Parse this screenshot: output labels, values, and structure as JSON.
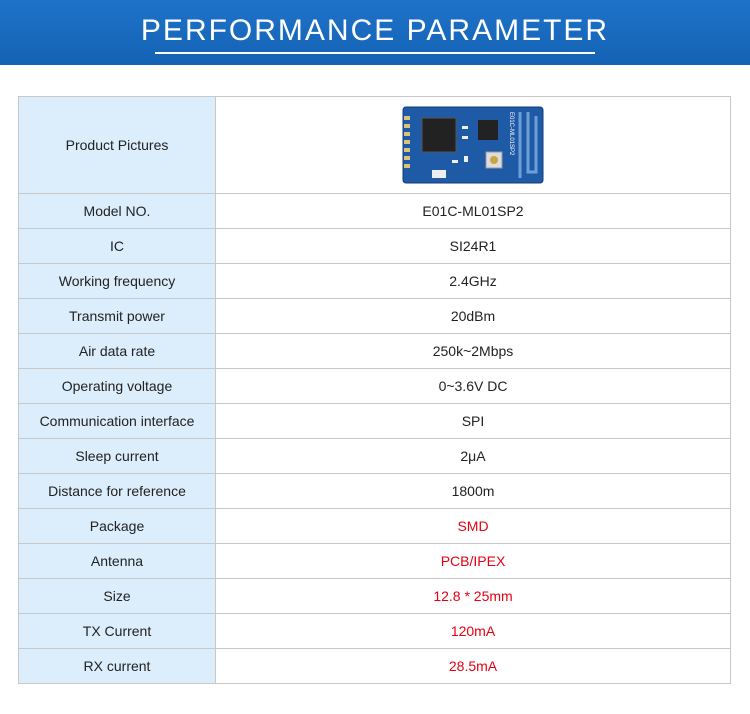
{
  "header": {
    "title": "PERFORMANCE PARAMETER"
  },
  "table": {
    "picture_row": {
      "label": "Product Pictures",
      "image_label": "E01C-ML01SP2"
    },
    "rows": [
      {
        "label": "Model NO.",
        "value": "E01C-ML01SP2",
        "highlight": false
      },
      {
        "label": "IC",
        "value": "SI24R1",
        "highlight": false
      },
      {
        "label": "Working frequency",
        "value": "2.4GHz",
        "highlight": false
      },
      {
        "label": "Transmit power",
        "value": "20dBm",
        "highlight": false
      },
      {
        "label": "Air data rate",
        "value": "250k~2Mbps",
        "highlight": false
      },
      {
        "label": "Operating voltage",
        "value": "0~3.6V DC",
        "highlight": false
      },
      {
        "label": "Communication interface",
        "value": "SPI",
        "highlight": false
      },
      {
        "label": "Sleep current",
        "value": "2μA",
        "highlight": false
      },
      {
        "label": "Distance for reference",
        "value": "1800m",
        "highlight": false
      },
      {
        "label": "Package",
        "value": "SMD",
        "highlight": true
      },
      {
        "label": "Antenna",
        "value": "PCB/IPEX",
        "highlight": true
      },
      {
        "label": "Size",
        "value": "12.8 * 25mm",
        "highlight": true
      },
      {
        "label": "TX Current",
        "value": "120mA",
        "highlight": true
      },
      {
        "label": "RX current",
        "value": "28.5mA",
        "highlight": true
      }
    ]
  }
}
